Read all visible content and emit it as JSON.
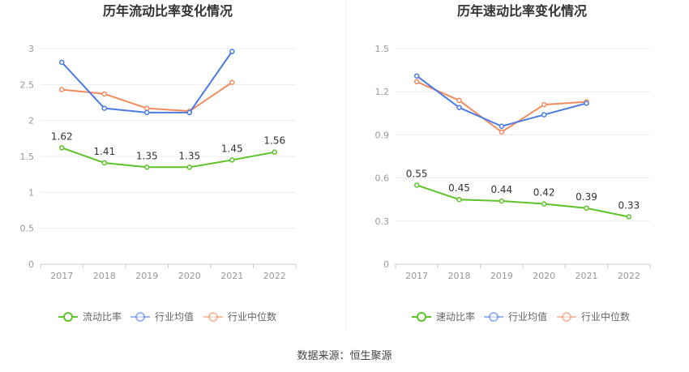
{
  "source_text": "数据来源：恒生聚源",
  "colors": {
    "company": "#5ec22a",
    "industry_avg": "#4b7be5",
    "industry_median": "#f28c5e"
  },
  "chart_data": [
    {
      "type": "line",
      "title": "历年流动比率变化情况",
      "x": [
        "2017",
        "2018",
        "2019",
        "2020",
        "2021",
        "2022"
      ],
      "ylim": [
        0,
        3
      ],
      "yticks": [
        "0",
        "0.5",
        "1",
        "1.5",
        "2",
        "2.5",
        "3"
      ],
      "legend_position": "bottom",
      "series": [
        {
          "name": "流动比率",
          "color": "#5ec22a",
          "values": [
            1.62,
            1.41,
            1.35,
            1.35,
            1.45,
            1.56
          ],
          "labels": [
            "1.62",
            "1.41",
            "1.35",
            "1.35",
            "1.45",
            "1.56"
          ]
        },
        {
          "name": "行业均值",
          "color": "#4b7be5",
          "values": [
            2.81,
            2.17,
            2.11,
            2.11,
            2.96,
            null
          ]
        },
        {
          "name": "行业中位数",
          "color": "#f28c5e",
          "values": [
            2.43,
            2.37,
            2.17,
            2.13,
            2.53,
            null
          ]
        }
      ]
    },
    {
      "type": "line",
      "title": "历年速动比率变化情况",
      "x": [
        "2017",
        "2018",
        "2019",
        "2020",
        "2021",
        "2022"
      ],
      "ylim": [
        0,
        1.5
      ],
      "yticks": [
        "0",
        "0.3",
        "0.6",
        "0.9",
        "1.2",
        "1.5"
      ],
      "legend_position": "bottom",
      "series": [
        {
          "name": "速动比率",
          "color": "#5ec22a",
          "values": [
            0.55,
            0.45,
            0.44,
            0.42,
            0.39,
            0.33
          ],
          "labels": [
            "0.55",
            "0.45",
            "0.44",
            "0.42",
            "0.39",
            "0.33"
          ]
        },
        {
          "name": "行业均值",
          "color": "#4b7be5",
          "values": [
            1.31,
            1.09,
            0.96,
            1.04,
            1.12,
            null
          ]
        },
        {
          "name": "行业中位数",
          "color": "#f28c5e",
          "values": [
            1.27,
            1.14,
            0.92,
            1.11,
            1.13,
            null
          ]
        }
      ]
    }
  ]
}
